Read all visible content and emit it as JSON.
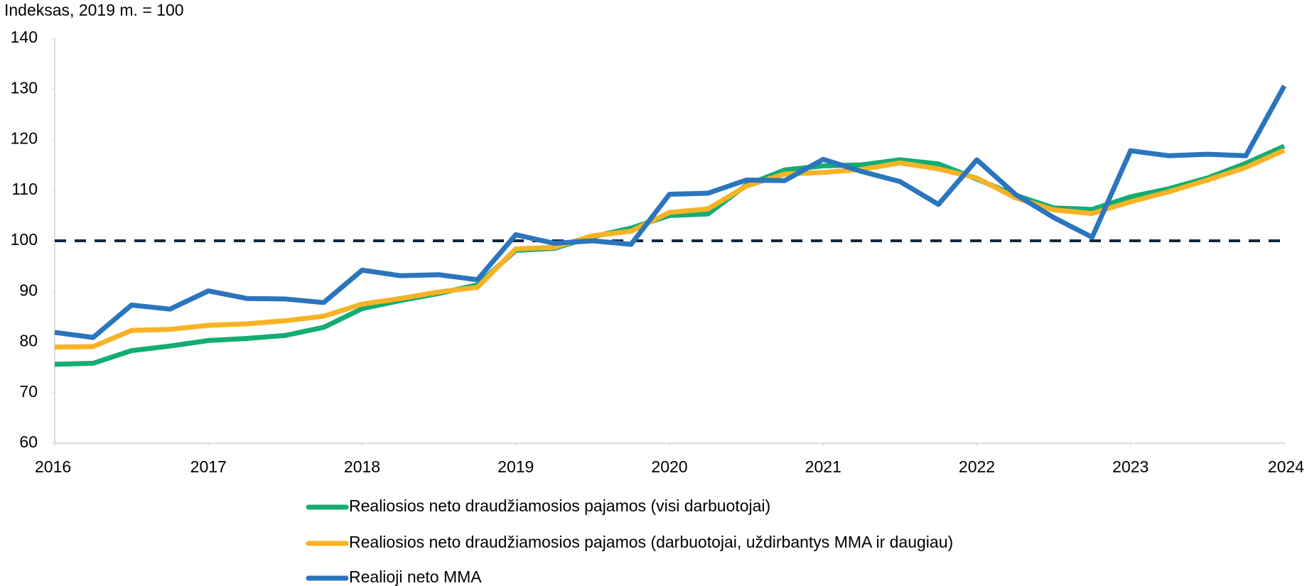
{
  "chart_data": {
    "type": "line",
    "title": "Indeksas, 2019 m. = 100",
    "x": [
      2016,
      2016.25,
      2016.5,
      2016.75,
      2017,
      2017.25,
      2017.5,
      2017.75,
      2018,
      2018.25,
      2018.5,
      2018.75,
      2019,
      2019.25,
      2019.5,
      2019.75,
      2020,
      2020.25,
      2020.5,
      2020.75,
      2021,
      2021.25,
      2021.5,
      2021.75,
      2022,
      2022.25,
      2022.5,
      2022.75,
      2023,
      2023.25,
      2023.5,
      2023.75,
      2024
    ],
    "series": [
      {
        "name": "Realiosios neto draudžiamosios pajamos (visi darbuotojai)",
        "color": "#12ad72",
        "values": [
          75.6,
          75.8,
          78.3,
          79.2,
          80.3,
          80.7,
          81.3,
          82.9,
          86.6,
          88.2,
          89.6,
          91.3,
          98.1,
          98.5,
          100.8,
          102.5,
          105.0,
          105.3,
          111.0,
          114.0,
          114.8,
          115.0,
          116.0,
          115.2,
          112.2,
          109.0,
          106.5,
          106.2,
          108.7,
          110.3,
          112.4,
          115.3,
          118.7
        ]
      },
      {
        "name": "Realiosios neto draudžiamosios pajamos (darbuotojai, uždirbantys MMA ir daugiau)",
        "color": "#f7b325",
        "values": [
          79.0,
          79.1,
          82.3,
          82.5,
          83.3,
          83.6,
          84.2,
          85.1,
          87.5,
          88.6,
          89.9,
          90.8,
          98.4,
          98.7,
          101.0,
          101.9,
          105.6,
          106.3,
          110.8,
          113.2,
          113.5,
          114.1,
          115.4,
          114.2,
          112.4,
          108.5,
          106.1,
          105.4,
          107.7,
          109.7,
          112.0,
          114.5,
          117.9
        ]
      },
      {
        "name": "Realioji neto MMA",
        "color": "#2b75bd",
        "values": [
          81.9,
          80.9,
          87.3,
          86.5,
          90.1,
          88.6,
          88.5,
          87.8,
          94.2,
          93.1,
          93.3,
          92.3,
          101.2,
          99.5,
          100.0,
          99.3,
          109.2,
          109.4,
          112.0,
          111.9,
          116.1,
          113.7,
          111.7,
          107.2,
          116.0,
          109.2,
          104.6,
          100.7,
          117.8,
          116.8,
          117.1,
          116.8,
          130.6
        ]
      }
    ],
    "reference_line": 100,
    "reference_color": "#10283f",
    "xlim": [
      2016,
      2024
    ],
    "xticks": [
      2016,
      2017,
      2018,
      2019,
      2020,
      2021,
      2022,
      2023,
      2024
    ],
    "ylim": [
      60,
      140
    ],
    "yticks": [
      60,
      70,
      80,
      90,
      100,
      110,
      120,
      130,
      140
    ],
    "grid": false,
    "legend": "bottom"
  }
}
